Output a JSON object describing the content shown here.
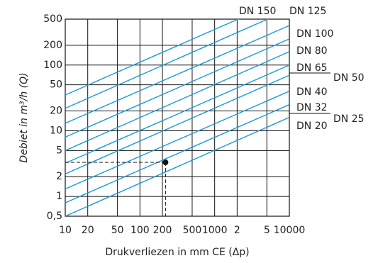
{
  "chart_data": {
    "type": "line",
    "x_label": "Drukverliezen in mm CE (Δp)",
    "y_label": "Debiet in m³/h (Q)",
    "log_x": true,
    "log_y": true,
    "grid": true,
    "xlim": [
      10,
      10000
    ],
    "xticks": [
      10,
      20,
      50,
      100,
      200,
      500,
      1000,
      {
        "value": 2000,
        "label": "2"
      },
      {
        "value": 5000,
        "label": "5"
      },
      10000
    ],
    "ylim": [
      0.5,
      500
    ],
    "yticks": [
      {
        "value": 0.5,
        "label": "0,5"
      },
      1,
      2,
      5,
      10,
      20,
      50,
      100,
      200,
      500
    ],
    "x": [
      10,
      10000
    ],
    "series": [
      {
        "name": "DN 150",
        "color": "#1a9ad6",
        "values": [
          35,
          1100
        ]
      },
      {
        "name": "DN 125",
        "color": "#1a9ad6",
        "values": [
          22,
          700
        ]
      },
      {
        "name": "DN 100",
        "color": "#1a9ad6",
        "values": [
          13,
          400
        ]
      },
      {
        "name": "DN 80",
        "color": "#1a9ad6",
        "values": [
          8,
          250
        ]
      },
      {
        "name": "DN 65",
        "color": "#1a9ad6",
        "values": [
          5,
          160
        ]
      },
      {
        "name": "DN 50",
        "color": "#1a9ad6",
        "values": [
          3.2,
          100
        ]
      },
      {
        "name": "DN 40",
        "color": "#1a9ad6",
        "values": [
          2.2,
          70
        ]
      },
      {
        "name": "DN 32",
        "color": "#1a9ad6",
        "values": [
          1.3,
          40
        ]
      },
      {
        "name": "DN 25",
        "color": "#1a9ad6",
        "values": [
          0.8,
          25
        ]
      },
      {
        "name": "DN 20",
        "color": "#1a9ad6",
        "values": [
          0.5,
          16
        ]
      }
    ],
    "marker": {
      "x": 220,
      "y": 3.3
    }
  }
}
